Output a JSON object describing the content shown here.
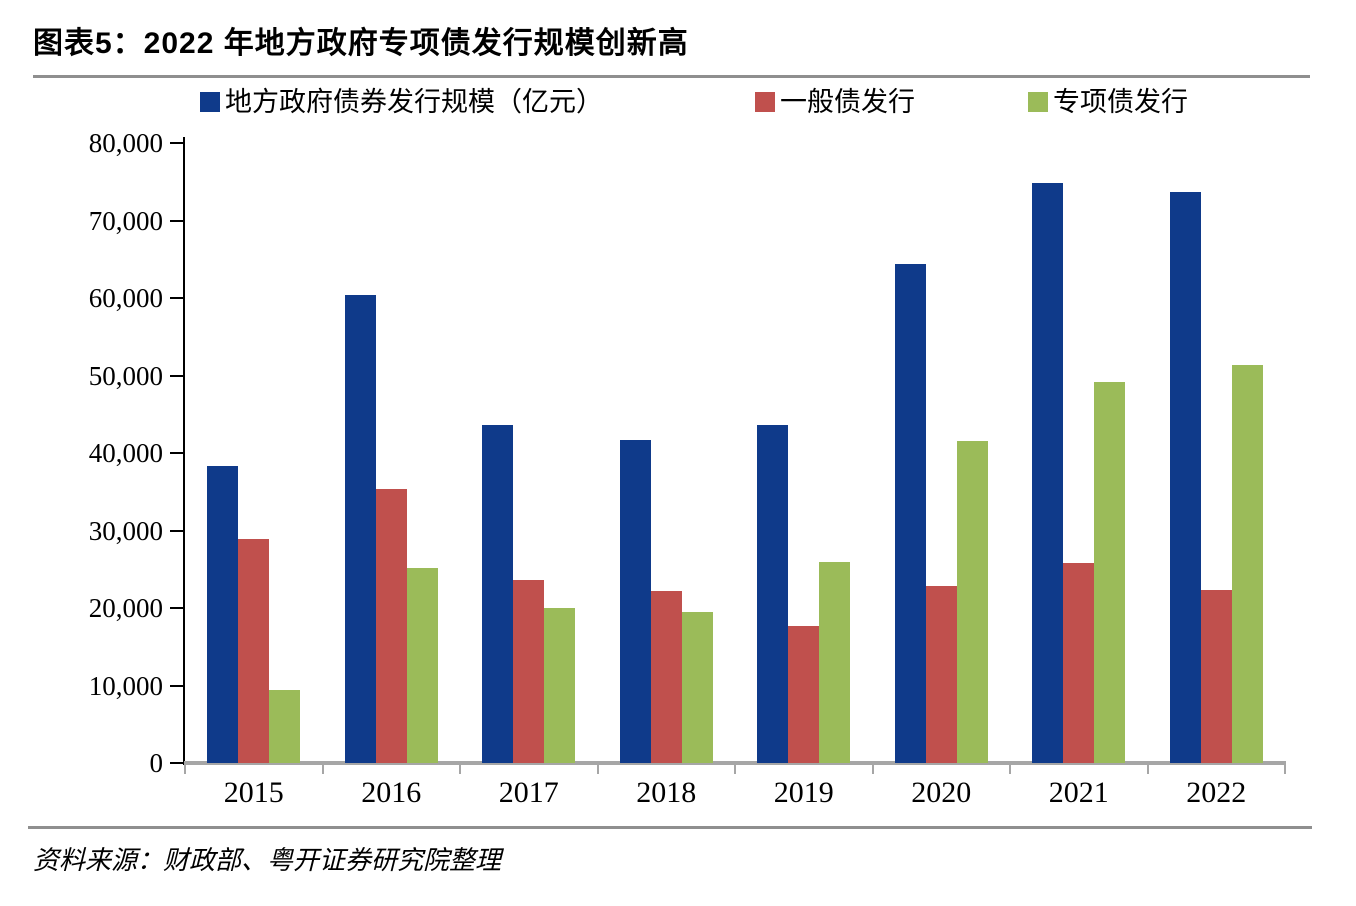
{
  "header": {
    "title": "图表5：2022 年地方政府专项债发行规模创新高"
  },
  "footer": {
    "source": "资料来源：财政部、粤开证券研究院整理"
  },
  "colors": {
    "total_bond": "#0f3a8a",
    "general_bond": "#c0504d",
    "special_bond": "#9bbb59",
    "axis_x": "#a6a6a6",
    "axis_y": "#000000",
    "rule": "#8f8f8f",
    "text": "#000000"
  },
  "chart_data": {
    "type": "bar",
    "title": "图表5：2022 年地方政府专项债发行规模创新高",
    "categories": [
      "2015",
      "2016",
      "2017",
      "2018",
      "2019",
      "2020",
      "2021",
      "2022"
    ],
    "series": [
      {
        "name": "地方政府债券发行规模（亿元）",
        "color_key": "total_bond",
        "values": [
          38351,
          60458,
          43581,
          41652,
          43624,
          64438,
          74898,
          73676
        ]
      },
      {
        "name": "一般债发行",
        "color_key": "general_bond",
        "values": [
          28886,
          35344,
          23619,
          22192,
          17742,
          22820,
          25772,
          22352
        ]
      },
      {
        "name": "专项债发行",
        "color_key": "special_bond",
        "values": [
          9464,
          25115,
          19962,
          19460,
          25882,
          41618,
          49126,
          51324
        ]
      }
    ],
    "ylim": [
      0,
      80000
    ],
    "ytick_step": 10000,
    "ytick_labels": [
      "0",
      "10,000",
      "20,000",
      "30,000",
      "40,000",
      "50,000",
      "60,000",
      "70,000",
      "80,000"
    ],
    "xlabel": "",
    "ylabel": "",
    "grid": false,
    "legend_position": "top"
  }
}
